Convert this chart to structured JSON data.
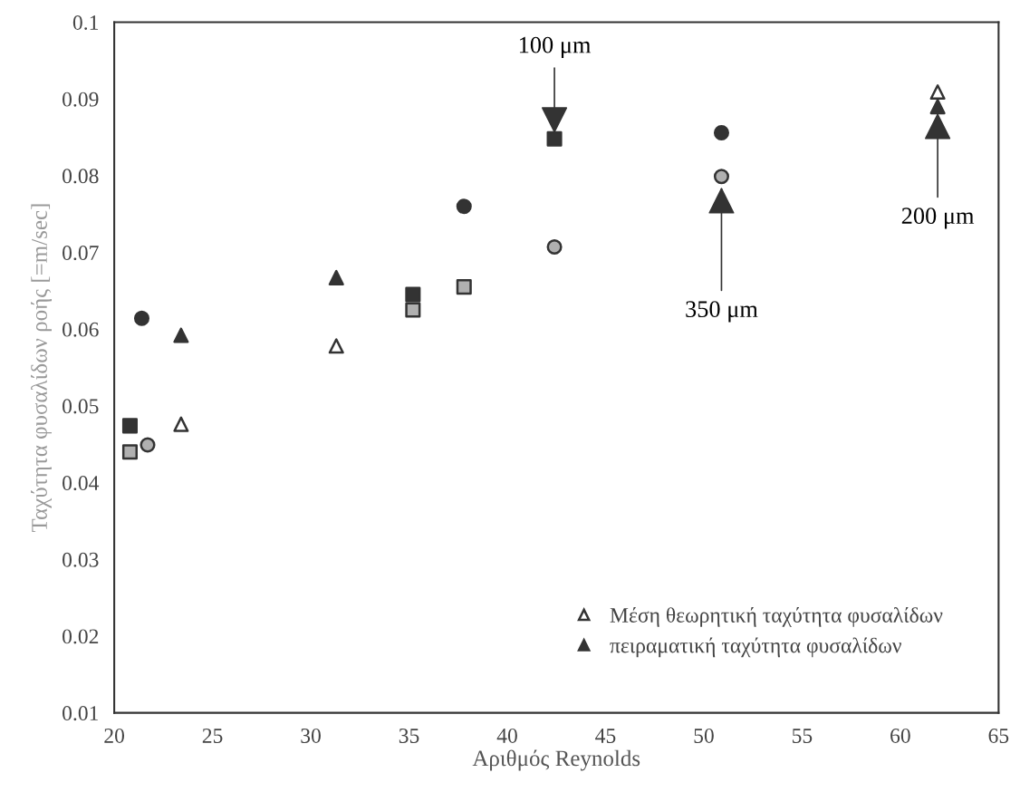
{
  "chart_data": {
    "type": "scatter",
    "xlabel": "Αριθμός Reynolds",
    "ylabel": "Ταχύτητα φυσαλίδων ροής [=m/sec]",
    "xlim": [
      20,
      65
    ],
    "xticks": [
      20,
      25,
      30,
      35,
      40,
      45,
      50,
      55,
      60,
      65
    ],
    "ylim": [
      0.01,
      0.1
    ],
    "yticks": [
      0.01,
      0.02,
      0.03,
      0.04,
      0.05,
      0.06,
      0.07,
      0.08,
      0.09,
      0.1
    ],
    "grid": false,
    "legend": "bottom right",
    "series": [
      {
        "marker": "triangle",
        "color": "#ffffff",
        "name": "Μέση θεωρητική ταχύτητα φυσαλίδων",
        "x": [
          23.4,
          31.3,
          61.9
        ],
        "values": [
          0.0476,
          0.0578,
          0.0909
        ]
      },
      {
        "marker": "triangle",
        "color": "#333333",
        "name": "πειραματική ταχύτητα φυσαλίδων",
        "x": [
          23.4,
          31.3,
          61.9
        ],
        "values": [
          0.0592,
          0.0667,
          0.089
        ]
      },
      {
        "marker": "square",
        "color": "#333333",
        "x": [
          20.8,
          35.2,
          42.4
        ],
        "values": [
          0.0474,
          0.0645,
          0.0848
        ]
      },
      {
        "marker": "square",
        "color": "#b0b0b0",
        "x": [
          20.8,
          35.2,
          37.8
        ],
        "values": [
          0.044,
          0.0625,
          0.0655
        ]
      },
      {
        "marker": "circle",
        "color": "#333333",
        "x": [
          21.4,
          37.8,
          50.9
        ],
        "values": [
          0.0614,
          0.076,
          0.0856
        ]
      },
      {
        "marker": "circle",
        "color": "#b0b0b0",
        "x": [
          21.7,
          42.4,
          50.9
        ],
        "values": [
          0.0449,
          0.0707,
          0.0799
        ]
      }
    ],
    "annotations": [
      {
        "text": "100 μm",
        "x": 42.4,
        "y": 0.0855
      },
      {
        "text": "350 μm",
        "x": 50.9,
        "y": 0.0785
      },
      {
        "text": "200 μm",
        "x": 61.9,
        "y": 0.0882
      }
    ]
  }
}
